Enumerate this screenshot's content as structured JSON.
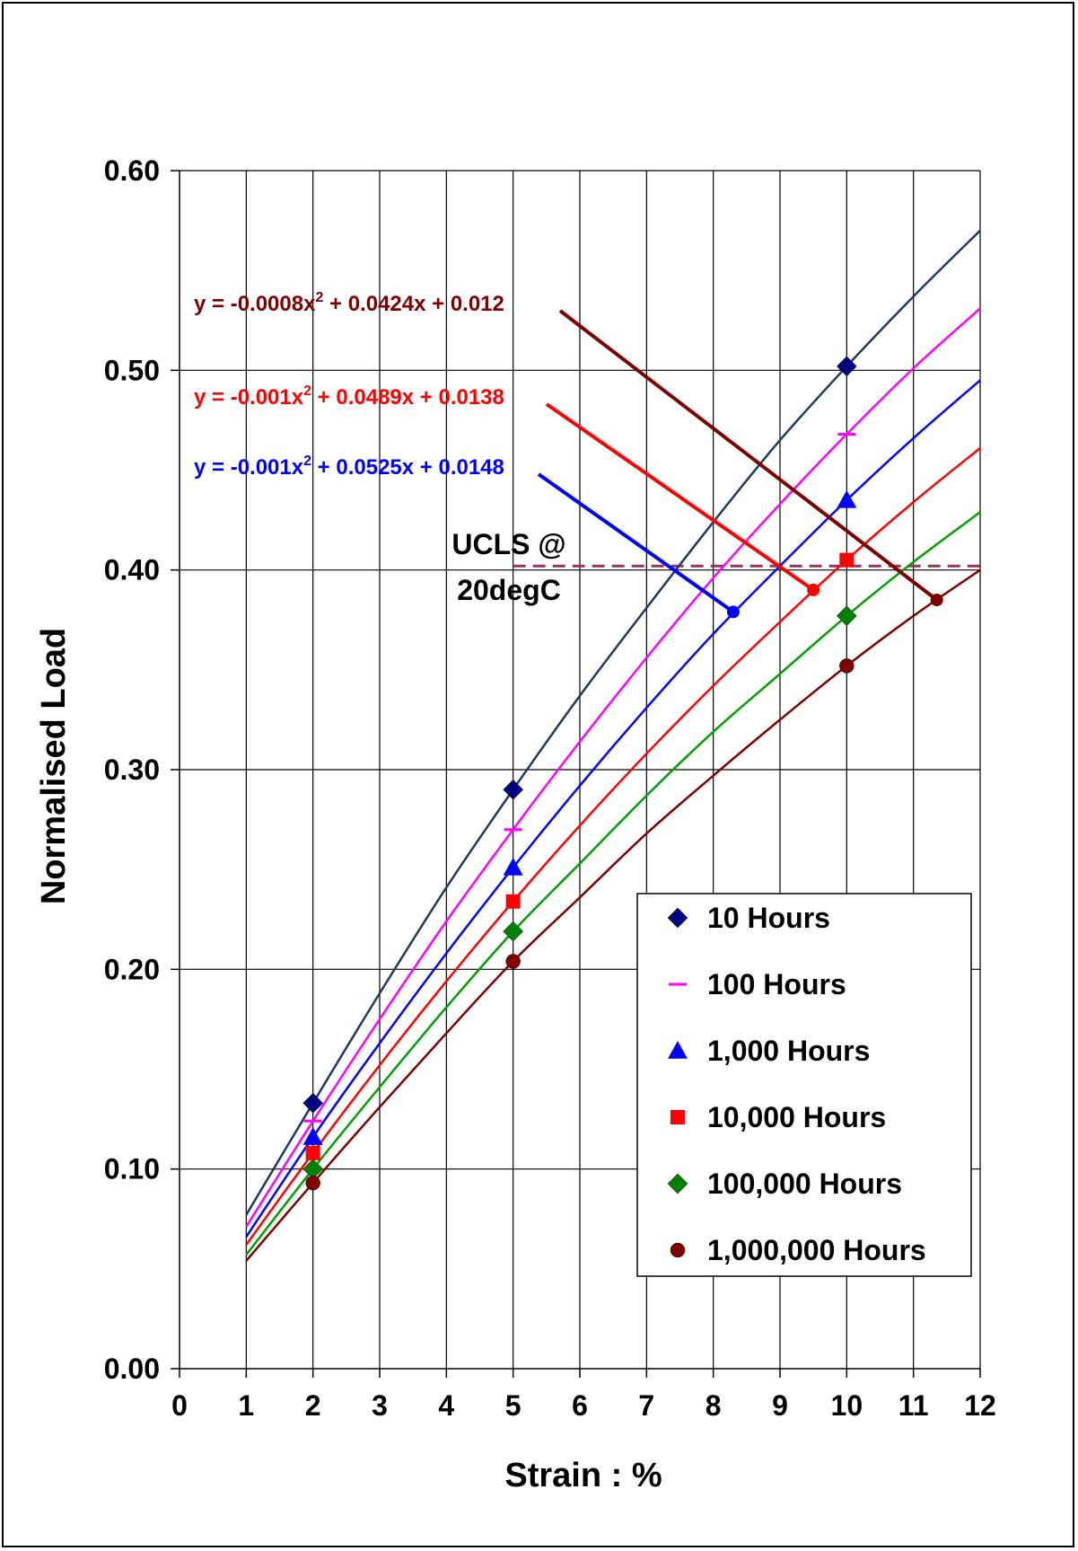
{
  "chart_data": {
    "type": "line",
    "xlabel": "Strain : %",
    "ylabel": "Normalised Load",
    "xlim": [
      0,
      12
    ],
    "ylim": [
      0,
      0.6
    ],
    "x_ticks": [
      "0",
      "1",
      "2",
      "3",
      "4",
      "5",
      "6",
      "7",
      "8",
      "9",
      "10",
      "11",
      "12"
    ],
    "y_ticks": [
      "0.00",
      "0.10",
      "0.20",
      "0.30",
      "0.40",
      "0.50",
      "0.60"
    ],
    "x_categories": [
      0,
      1,
      2,
      3,
      4,
      5,
      6,
      7,
      8,
      9,
      10,
      11,
      12
    ],
    "grid": true,
    "legend_position": "bottom-right",
    "series": [
      {
        "name": "10 Hours",
        "color": "#000080",
        "line_color": "#1f3a5f",
        "marker": "diamond",
        "points": [
          [
            2,
            0.133
          ],
          [
            5,
            0.29
          ],
          [
            10,
            0.502
          ]
        ],
        "curve": [
          [
            1,
            0.077
          ],
          [
            2,
            0.133
          ],
          [
            3,
            0.188
          ],
          [
            4,
            0.241
          ],
          [
            5,
            0.29
          ],
          [
            6,
            0.337
          ],
          [
            7,
            0.381
          ],
          [
            8,
            0.424
          ],
          [
            9,
            0.465
          ],
          [
            10,
            0.502
          ],
          [
            11,
            0.537
          ],
          [
            12,
            0.57
          ]
        ]
      },
      {
        "name": "100 Hours",
        "color": "#ff00ff",
        "line_color": "#ff00ff",
        "marker": "dash",
        "points": [
          [
            2,
            0.124
          ],
          [
            5,
            0.27
          ],
          [
            10,
            0.468
          ]
        ],
        "curve": [
          [
            1,
            0.071
          ],
          [
            2,
            0.124
          ],
          [
            3,
            0.175
          ],
          [
            4,
            0.224
          ],
          [
            5,
            0.27
          ],
          [
            6,
            0.314
          ],
          [
            7,
            0.356
          ],
          [
            8,
            0.396
          ],
          [
            9,
            0.433
          ],
          [
            10,
            0.468
          ],
          [
            11,
            0.501
          ],
          [
            12,
            0.531
          ]
        ]
      },
      {
        "name": "1,000 Hours",
        "color": "#0000ff",
        "line_color": "#0000ff",
        "marker": "triangle",
        "points": [
          [
            2,
            0.116
          ],
          [
            5,
            0.251
          ],
          [
            10,
            0.435
          ]
        ],
        "curve": [
          [
            1,
            0.066
          ],
          [
            2,
            0.116
          ],
          [
            3,
            0.163
          ],
          [
            4,
            0.208
          ],
          [
            5,
            0.251
          ],
          [
            6,
            0.292
          ],
          [
            7,
            0.331
          ],
          [
            8,
            0.368
          ],
          [
            9,
            0.402
          ],
          [
            10,
            0.435
          ],
          [
            11,
            0.466
          ],
          [
            12,
            0.495
          ]
        ]
      },
      {
        "name": "10,000 Hours",
        "color": "#ff0000",
        "line_color": "#ff0000",
        "marker": "square",
        "points": [
          [
            2,
            0.108
          ],
          [
            5,
            0.234
          ],
          [
            10,
            0.405
          ]
        ],
        "curve": [
          [
            1,
            0.062
          ],
          [
            2,
            0.108
          ],
          [
            3,
            0.152
          ],
          [
            4,
            0.194
          ],
          [
            5,
            0.234
          ],
          [
            6,
            0.272
          ],
          [
            7,
            0.308
          ],
          [
            8,
            0.342
          ],
          [
            9,
            0.374
          ],
          [
            10,
            0.405
          ],
          [
            11,
            0.434
          ],
          [
            12,
            0.461
          ]
        ]
      },
      {
        "name": "100,000 Hours",
        "color": "#008000",
        "line_color": "#00a000",
        "marker": "diamond",
        "points": [
          [
            2,
            0.1
          ],
          [
            5,
            0.219
          ],
          [
            10,
            0.377
          ]
        ],
        "curve": [
          [
            1,
            0.057
          ],
          [
            2,
            0.1
          ],
          [
            3,
            0.141
          ],
          [
            4,
            0.181
          ],
          [
            5,
            0.219
          ],
          [
            6,
            0.253
          ],
          [
            7,
            0.287
          ],
          [
            8,
            0.319
          ],
          [
            9,
            0.348
          ],
          [
            10,
            0.377
          ],
          [
            11,
            0.404
          ],
          [
            12,
            0.429
          ]
        ]
      },
      {
        "name": "1,000,000 Hours",
        "color": "#800000",
        "line_color": "#800000",
        "marker": "circle",
        "points": [
          [
            2,
            0.093
          ],
          [
            5,
            0.204
          ],
          [
            10,
            0.352
          ]
        ],
        "curve": [
          [
            1,
            0.054
          ],
          [
            2,
            0.093
          ],
          [
            3,
            0.131
          ],
          [
            4,
            0.168
          ],
          [
            5,
            0.204
          ],
          [
            6,
            0.236
          ],
          [
            7,
            0.268
          ],
          [
            8,
            0.297
          ],
          [
            9,
            0.325
          ],
          [
            10,
            0.352
          ],
          [
            11,
            0.377
          ],
          [
            12,
            0.4
          ]
        ]
      }
    ],
    "ucls_line": {
      "y": 0.402,
      "x_start": 5,
      "x_end": 12,
      "color": "#993366"
    },
    "ucls_label": [
      "UCLS @",
      "20degC"
    ],
    "equations": [
      {
        "prefix": "y = -0.0008x",
        "sup": "2",
        "suffix": " + 0.0424x + 0.012",
        "color": "#800000",
        "target": [
          11.35,
          0.385
        ]
      },
      {
        "prefix": "y = -0.001x",
        "sup": "2",
        "suffix": " + 0.0489x + 0.0138",
        "color": "#ff0000",
        "target": [
          9.5,
          0.39
        ]
      },
      {
        "prefix": "y = -0.001x",
        "sup": "2",
        "suffix": " + 0.0525x + 0.0148",
        "color": "#0000ff",
        "target": [
          8.3,
          0.379
        ]
      }
    ]
  }
}
